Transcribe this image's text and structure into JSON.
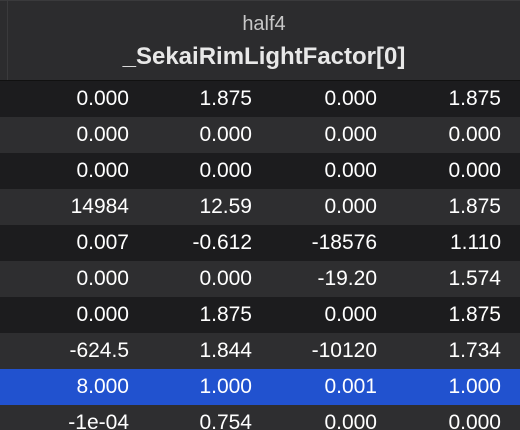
{
  "header": {
    "type": "half4",
    "variable": "_SekaiRimLightFactor[0]"
  },
  "rows": [
    [
      "0.000",
      "1.875",
      "0.000",
      "1.875"
    ],
    [
      "0.000",
      "0.000",
      "0.000",
      "0.000"
    ],
    [
      "0.000",
      "0.000",
      "0.000",
      "0.000"
    ],
    [
      "14984",
      "12.59",
      "0.000",
      "1.875"
    ],
    [
      "0.007",
      "-0.612",
      "-18576",
      "1.110"
    ],
    [
      "0.000",
      "0.000",
      "-19.20",
      "1.574"
    ],
    [
      "0.000",
      "1.875",
      "0.000",
      "1.875"
    ],
    [
      "-624.5",
      "1.844",
      "-10120",
      "1.734"
    ],
    [
      "8.000",
      "1.000",
      "0.001",
      "1.000"
    ],
    [
      "-1e-04",
      "0.754",
      "0.000",
      "0.000"
    ]
  ],
  "selected_row": 8,
  "colors": {
    "background": "#1e1e1e",
    "header_bg": "#2c2c2e",
    "row_odd": "#1c1c1e",
    "row_even": "#2e2e30",
    "selection": "#2152cf"
  }
}
